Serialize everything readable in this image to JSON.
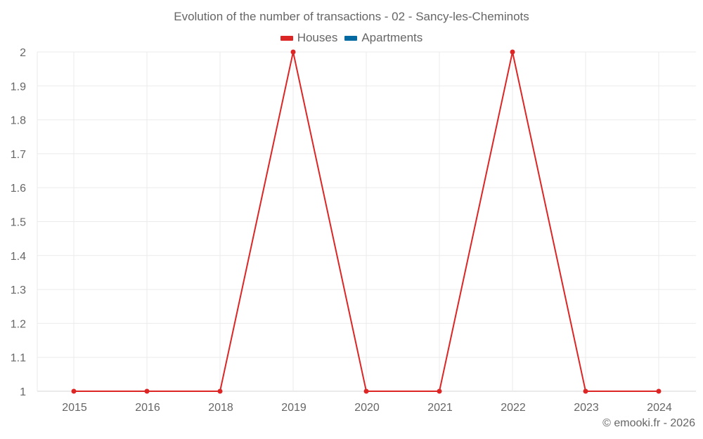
{
  "chart_data": {
    "type": "line",
    "title": "Evolution of the number of transactions - 02 - Sancy-les-Cheminots",
    "categories": [
      "2015",
      "2016",
      "2018",
      "2019",
      "2020",
      "2021",
      "2022",
      "2023",
      "2024"
    ],
    "series": [
      {
        "name": "Houses",
        "color": "#dc2626",
        "values": [
          1,
          1,
          1,
          2,
          1,
          1,
          2,
          1,
          1
        ]
      },
      {
        "name": "Apartments",
        "color": "#0369a1",
        "values": []
      }
    ],
    "yticks": [
      "1",
      "1.1",
      "1.2",
      "1.3",
      "1.4",
      "1.5",
      "1.6",
      "1.7",
      "1.8",
      "1.9",
      "2"
    ],
    "ylim": [
      1,
      2
    ],
    "xlabel": "",
    "ylabel": "",
    "grid": true,
    "legend_position": "top"
  },
  "legend": [
    {
      "label": "Houses",
      "color": "#dc2626"
    },
    {
      "label": "Apartments",
      "color": "#0369a1"
    }
  ],
  "credit": "© emooki.fr - 2026"
}
